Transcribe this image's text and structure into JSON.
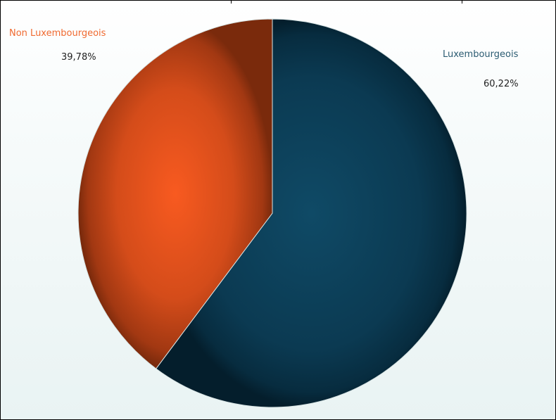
{
  "chart_data": {
    "type": "pie",
    "slices": [
      {
        "label": "Luxembourgeois",
        "value": 60.22,
        "value_label": "60,22%",
        "color": "#0b3a52",
        "label_color": "#2c5c72"
      },
      {
        "label": "Non Luxembourgeois",
        "value": 39.78,
        "value_label": "39,78%",
        "color": "#e2501c",
        "label_color": "#f06a30"
      }
    ],
    "start_angle": "12 o'clock",
    "direction": "clockwise",
    "legend": "none"
  }
}
